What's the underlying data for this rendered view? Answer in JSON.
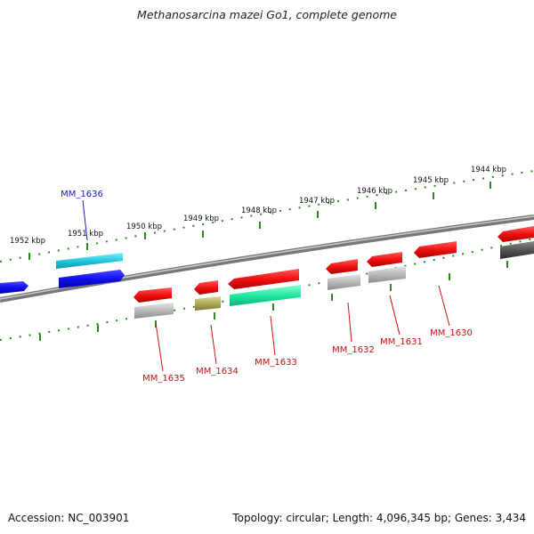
{
  "title": "Methanosarcina mazei Go1, complete genome",
  "footer": {
    "accession": "Accession: NC_003901",
    "summary": "Topology: circular; Length: 4,096,345 bp; Genes: 3,434"
  },
  "colors": {
    "background": "#ffffff",
    "backbone": "#888888",
    "scale_dots": "#2e8b22",
    "forward_gene": "#1010ee",
    "reverse_gene": "#ee1111",
    "label_forward": "#1a1acc",
    "label_reverse": "#cc1111"
  },
  "scale_ticks": [
    {
      "label": "1952 kbp"
    },
    {
      "label": "1951 kbp"
    },
    {
      "label": "1950 kbp"
    },
    {
      "label": "1949 kbp"
    },
    {
      "label": "1948 kbp"
    },
    {
      "label": "1947 kbp"
    },
    {
      "label": "1946 kbp"
    },
    {
      "label": "1945 kbp"
    },
    {
      "label": "1944 kbp"
    }
  ],
  "genes": [
    {
      "name": "MM_1636",
      "strand": "forward",
      "color": "#1010ee",
      "cog_color": "#22c8dd"
    },
    {
      "name": "MM_1635",
      "strand": "reverse",
      "color": "#ee1111",
      "cog_color": "#b8b8b8"
    },
    {
      "name": "MM_1634",
      "strand": "reverse",
      "color": "#ee1111",
      "cog_color": "#b0aa58"
    },
    {
      "name": "MM_1633",
      "strand": "reverse",
      "color": "#ee1111",
      "cog_color": "#22e8a0"
    },
    {
      "name": "MM_1632",
      "strand": "reverse",
      "color": "#ee1111",
      "cog_color": "#b8b8b8"
    },
    {
      "name": "MM_1631",
      "strand": "reverse",
      "color": "#ee1111",
      "cog_color": "#c4c4c4"
    },
    {
      "name": "MM_1630",
      "strand": "reverse",
      "color": "#ee1111",
      "cog_color": null
    }
  ]
}
